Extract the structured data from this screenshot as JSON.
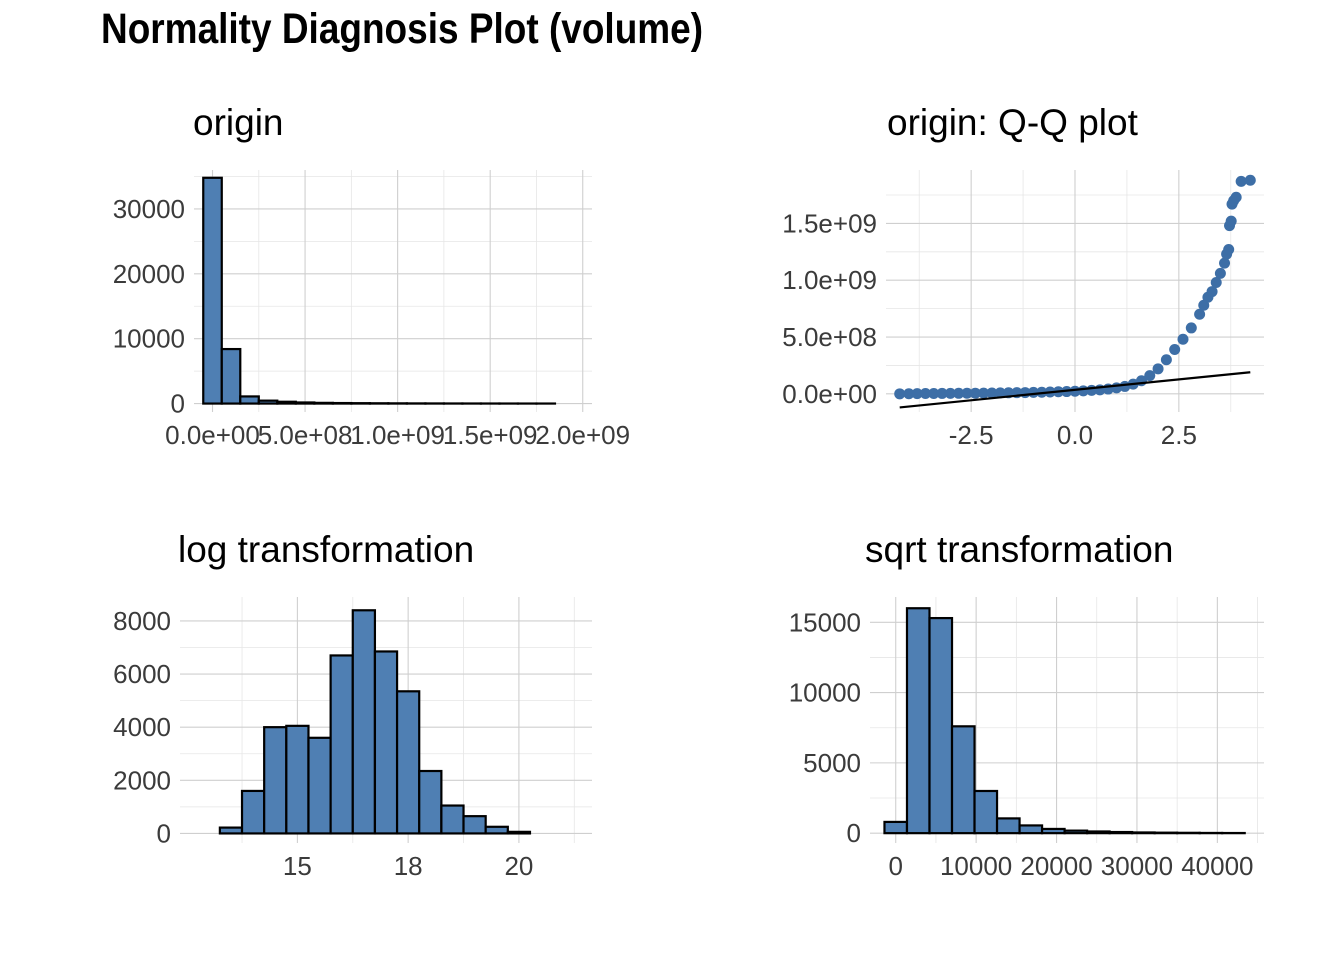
{
  "page": {
    "title": "Normality Diagnosis Plot (volume)"
  },
  "colors": {
    "fill": "#4f7fb3",
    "point": "#3d6ea6",
    "line": "#000000"
  },
  "chart_data": [
    {
      "id": "origin",
      "type": "bar",
      "title": "origin",
      "bin_width": 100000000,
      "bin_start": -50000000,
      "values": [
        34800,
        8400,
        1100,
        450,
        280,
        170,
        110,
        80,
        60,
        45,
        35,
        25,
        20,
        15,
        12,
        10,
        8,
        6,
        5
      ],
      "xlim": [
        -100000000,
        2050000000
      ],
      "ylim": [
        -1300,
        36000
      ],
      "x_ticks": [
        0,
        500000000,
        1000000000,
        1500000000,
        2000000000
      ],
      "x_tick_labels": [
        "0.0e+00",
        "5.0e+08",
        "1.0e+09",
        "1.5e+09",
        "2.0e+09"
      ],
      "y_ticks": [
        0,
        10000,
        20000,
        30000
      ],
      "y_tick_labels": [
        "0",
        "10000",
        "20000",
        "30000"
      ]
    },
    {
      "id": "qq",
      "type": "scatter",
      "title": "origin: Q-Q plot",
      "points": [
        [
          -4.22,
          0
        ],
        [
          -4.0,
          1000000
        ],
        [
          -3.8,
          2000000
        ],
        [
          -3.6,
          2500000
        ],
        [
          -3.4,
          3000000
        ],
        [
          -3.2,
          3500000
        ],
        [
          -3.0,
          4000000
        ],
        [
          -2.8,
          4500000
        ],
        [
          -2.6,
          5000000
        ],
        [
          -2.4,
          5500000
        ],
        [
          -2.2,
          6000000
        ],
        [
          -2.0,
          7000000
        ],
        [
          -1.8,
          8000000
        ],
        [
          -1.6,
          9000000
        ],
        [
          -1.4,
          10000000
        ],
        [
          -1.2,
          11000000
        ],
        [
          -1.0,
          12500000
        ],
        [
          -0.8,
          14000000
        ],
        [
          -0.6,
          16000000
        ],
        [
          -0.4,
          18000000
        ],
        [
          -0.2,
          20000000
        ],
        [
          0.0,
          23000000
        ],
        [
          0.2,
          26000000
        ],
        [
          0.4,
          30000000
        ],
        [
          0.6,
          35000000
        ],
        [
          0.8,
          42000000
        ],
        [
          1.0,
          52000000
        ],
        [
          1.2,
          65000000
        ],
        [
          1.4,
          85000000
        ],
        [
          1.6,
          115000000
        ],
        [
          1.8,
          160000000
        ],
        [
          2.0,
          220000000
        ],
        [
          2.2,
          300000000
        ],
        [
          2.4,
          390000000
        ],
        [
          2.6,
          480000000
        ],
        [
          2.8,
          580000000
        ],
        [
          3.0,
          700000000
        ],
        [
          3.1,
          780000000
        ],
        [
          3.2,
          850000000
        ],
        [
          3.3,
          900000000
        ],
        [
          3.4,
          980000000
        ],
        [
          3.5,
          1060000000
        ],
        [
          3.6,
          1150000000
        ],
        [
          3.65,
          1230000000
        ],
        [
          3.7,
          1270000000
        ],
        [
          3.72,
          1480000000
        ],
        [
          3.76,
          1520000000
        ],
        [
          3.78,
          1670000000
        ],
        [
          3.82,
          1700000000
        ],
        [
          3.88,
          1730000000
        ],
        [
          4.0,
          1870000000
        ],
        [
          4.22,
          1880000000
        ]
      ],
      "ref_line": [
        [
          -4.22,
          -120000000
        ],
        [
          4.22,
          190000000
        ]
      ],
      "xlim": [
        -4.55,
        4.55
      ],
      "ylim": [
        -160000000,
        1970000000
      ],
      "x_ticks": [
        -2.5,
        0.0,
        2.5
      ],
      "x_tick_labels": [
        "-2.5",
        "0.0",
        "2.5"
      ],
      "y_ticks": [
        0,
        500000000,
        1000000000,
        1500000000
      ],
      "y_tick_labels": [
        "0.0e+00",
        "5.0e+08",
        "1.0e+09",
        "1.5e+09"
      ]
    },
    {
      "id": "log",
      "type": "bar",
      "title": "log transformation",
      "bin_width": 0.5,
      "bin_start": 12.75,
      "values": [
        0,
        220,
        1600,
        4000,
        4050,
        3600,
        6700,
        8400,
        6850,
        5350,
        2350,
        1050,
        650,
        250,
        60,
        0
      ],
      "xlim": [
        12.35,
        21.65
      ],
      "ylim": [
        -360,
        8900
      ],
      "x_ticks": [
        15,
        17.5,
        20
      ],
      "x_tick_labels": [
        "15",
        "18",
        "20"
      ],
      "y_ticks": [
        0,
        2000,
        4000,
        6000,
        8000
      ],
      "y_tick_labels": [
        "0",
        "2000",
        "4000",
        "6000",
        "8000"
      ]
    },
    {
      "id": "sqrt",
      "type": "bar",
      "title": "sqrt transformation",
      "bin_width": 2800,
      "bin_start": -1400,
      "values": [
        800,
        16000,
        15300,
        7600,
        3000,
        1050,
        550,
        300,
        180,
        120,
        80,
        50,
        35,
        25,
        15,
        10
      ],
      "xlim": [
        -3200,
        45800
      ],
      "ylim": [
        -700,
        16800
      ],
      "x_ticks": [
        0,
        10000,
        20000,
        30000,
        40000
      ],
      "x_tick_labels": [
        "0",
        "10000",
        "20000",
        "30000",
        "40000"
      ],
      "y_ticks": [
        0,
        5000,
        10000,
        15000
      ],
      "y_tick_labels": [
        "0",
        "5000",
        "10000",
        "15000"
      ]
    }
  ]
}
